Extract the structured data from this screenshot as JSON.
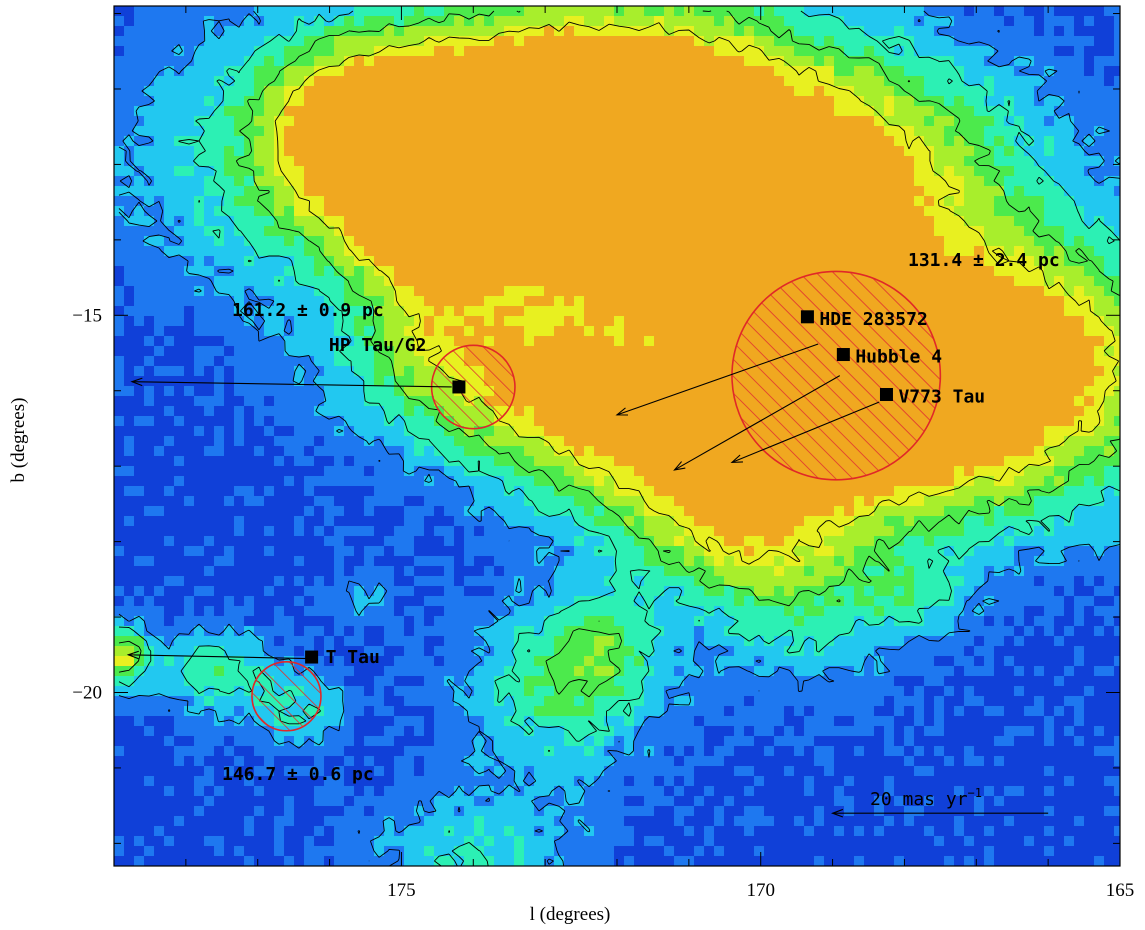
{
  "chart_data": {
    "type": "heatmap",
    "title": "",
    "xlabel": "l (degrees)",
    "ylabel": "b (degrees)",
    "xlim": [
      179,
      165
    ],
    "ylim": [
      -22.3,
      -10.9
    ],
    "x_ticks": [
      175,
      170,
      165
    ],
    "x_tick_labels": [
      "175",
      "170",
      "165"
    ],
    "y_ticks": [
      -15,
      -20
    ],
    "y_tick_labels": [
      "−15",
      "−20"
    ],
    "colormap": [
      "#1040d8",
      "#1e78f0",
      "#22c8f0",
      "#2cf0b4",
      "#4cea4c",
      "#a8ee2c",
      "#e8f020",
      "#f0a820"
    ],
    "contours": true,
    "stars": [
      {
        "name": "HP Tau/G2",
        "l": 174.2,
        "b": -15.95
      },
      {
        "name": "T Tau",
        "l": 176.25,
        "b": -19.53
      },
      {
        "name": "HDE 283572",
        "l": 169.35,
        "b": -15.02
      },
      {
        "name": "Hubble 4",
        "l": 168.85,
        "b": -15.52
      },
      {
        "name": "V773 Tau",
        "l": 168.25,
        "b": -16.05
      }
    ],
    "parallax_regions": [
      {
        "center_l": 174.0,
        "center_b": -15.95,
        "radius_deg": 0.58,
        "label": "161.2 ± 0.9 pc"
      },
      {
        "center_l": 176.6,
        "center_b": -20.05,
        "radius_deg": 0.48,
        "label": "146.7 ± 0.6 pc"
      },
      {
        "center_l": 168.95,
        "center_b": -15.8,
        "radius_deg": 1.45,
        "label": "131.4 ± 2.4 pc"
      }
    ],
    "proper_motion_arrows": [
      {
        "from_l": 174.3,
        "from_b": -15.95,
        "to_l": 178.75,
        "to_b": -15.88
      },
      {
        "from_l": 176.3,
        "from_b": -19.55,
        "to_l": 178.8,
        "to_b": -19.5
      },
      {
        "from_l": 169.2,
        "from_b": -15.38,
        "to_l": 172.0,
        "to_b": -16.32
      },
      {
        "from_l": 168.9,
        "from_b": -15.8,
        "to_l": 171.2,
        "to_b": -17.05
      },
      {
        "from_l": 168.35,
        "from_b": -16.15,
        "to_l": 170.4,
        "to_b": -16.95
      }
    ],
    "scale_arrow": {
      "label": "20 mas yr",
      "superscript": "−1",
      "from_l": 166.0,
      "to_l": 169.0,
      "b": -21.6
    }
  }
}
